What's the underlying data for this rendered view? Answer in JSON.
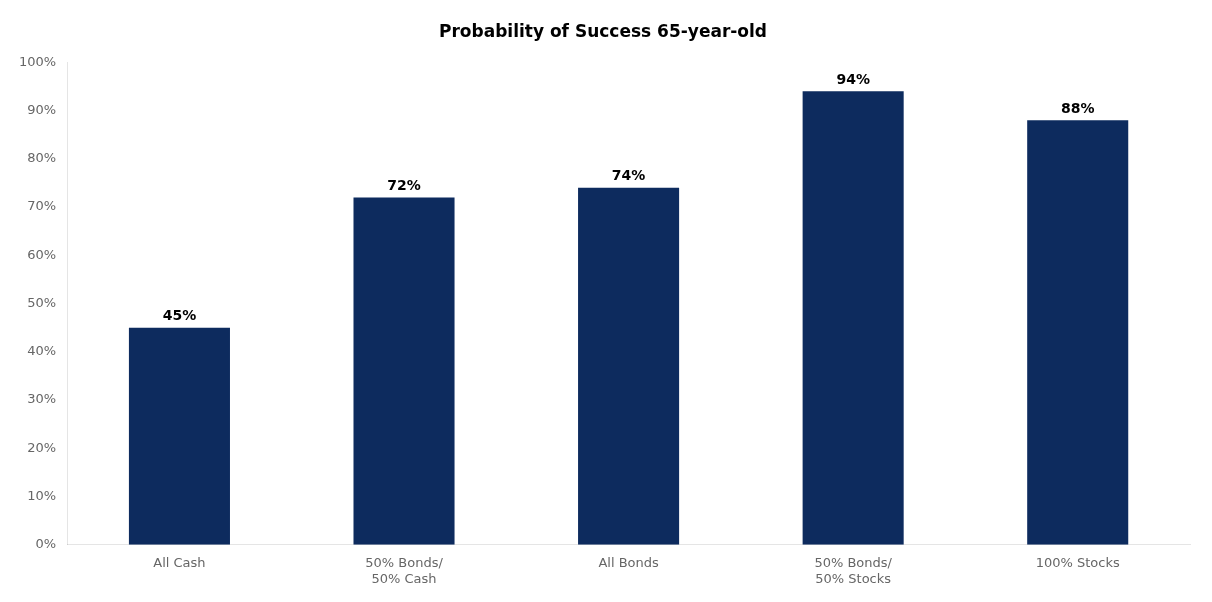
{
  "chart_data": {
    "type": "bar",
    "title": "Probability of Success 65-year-old",
    "categories": [
      "All Cash",
      "50% Bonds/\n50% Cash",
      "All Bonds",
      "50% Bonds/\n50% Stocks",
      "100% Stocks"
    ],
    "values": [
      45,
      72,
      74,
      94,
      88
    ],
    "value_labels": [
      "45%",
      "72%",
      "74%",
      "94%",
      "88%"
    ],
    "data_labels": true,
    "color": "#0d2b5e",
    "ylim": [
      0,
      100
    ],
    "yticks": [
      {
        "value": 0,
        "label": "0%"
      },
      {
        "value": 10,
        "label": "10%"
      },
      {
        "value": 20,
        "label": "20%"
      },
      {
        "value": 30,
        "label": "30%"
      },
      {
        "value": 40,
        "label": "40%"
      },
      {
        "value": 50,
        "label": "50%"
      },
      {
        "value": 60,
        "label": "60%"
      },
      {
        "value": 70,
        "label": "70%"
      },
      {
        "value": 80,
        "label": "80%"
      },
      {
        "value": 90,
        "label": "90%"
      },
      {
        "value": 100,
        "label": "100%"
      }
    ],
    "grid": false
  }
}
